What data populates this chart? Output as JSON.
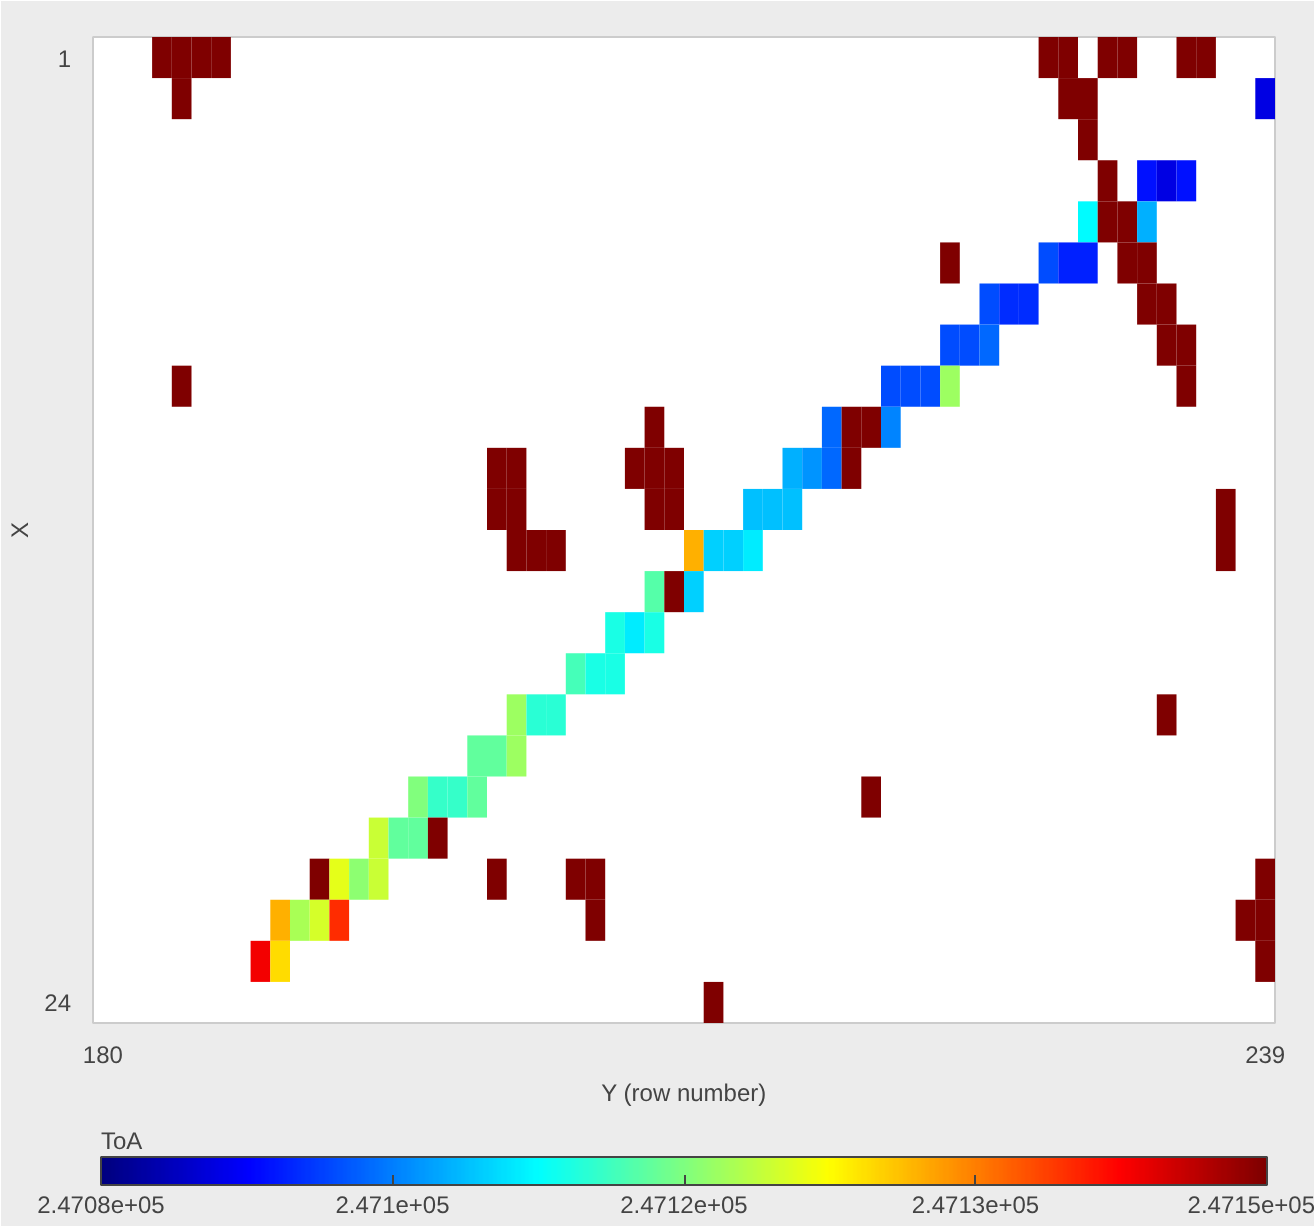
{
  "chart_data": {
    "type": "heatmap",
    "xlabel": "Y (row number)",
    "ylabel": "X",
    "clabel": "ToA",
    "categories": [
      "180",
      null,
      null,
      null,
      null,
      null,
      null,
      null,
      null,
      null,
      null,
      null,
      null,
      null,
      null,
      null,
      null,
      null,
      null,
      null,
      null,
      null,
      null,
      null,
      null,
      null,
      null,
      null,
      null,
      null,
      null,
      null,
      null,
      null,
      null,
      null,
      null,
      null,
      null,
      null,
      null,
      null,
      null,
      null,
      null,
      null,
      null,
      null,
      null,
      null,
      null,
      null,
      null,
      null,
      null,
      null,
      null,
      null,
      null,
      "239"
    ],
    "y_categories": [
      "1",
      null,
      null,
      null,
      null,
      null,
      null,
      null,
      null,
      null,
      null,
      null,
      null,
      null,
      null,
      null,
      null,
      null,
      null,
      null,
      null,
      null,
      null,
      "24"
    ],
    "clim": [
      247080,
      247150
    ],
    "cticks": [
      {
        "value": 247080,
        "label": "2.4708e+05"
      },
      {
        "value": 247097.5,
        "label": "2.471e+05"
      },
      {
        "value": 247115,
        "label": "2.4712e+05"
      },
      {
        "value": 247132.5,
        "label": "2.4713e+05"
      },
      {
        "value": 247150,
        "label": "2.4715e+05"
      }
    ],
    "cells": [
      [
        null,
        null,
        null,
        247150,
        247150,
        247150,
        247150,
        null,
        null,
        null,
        null,
        null,
        null,
        null,
        null,
        null,
        null,
        null,
        null,
        null,
        null,
        null,
        null,
        null,
        null,
        null,
        null,
        null,
        null,
        null,
        null,
        null,
        null,
        null,
        null,
        null,
        null,
        null,
        null,
        null,
        null,
        null,
        null,
        null,
        null,
        null,
        null,
        null,
        247150,
        247150,
        null,
        247150,
        247150,
        null,
        null,
        247150,
        247150,
        null,
        null,
        null
      ],
      [
        null,
        null,
        null,
        null,
        247150,
        null,
        null,
        null,
        null,
        null,
        null,
        null,
        null,
        null,
        null,
        null,
        null,
        null,
        null,
        null,
        null,
        null,
        null,
        null,
        null,
        null,
        null,
        null,
        null,
        null,
        null,
        null,
        null,
        null,
        null,
        null,
        null,
        null,
        null,
        null,
        null,
        null,
        null,
        null,
        null,
        null,
        null,
        null,
        null,
        247150,
        247150,
        null,
        null,
        null,
        null,
        null,
        null,
        null,
        null,
        247087
      ],
      [
        null,
        null,
        null,
        null,
        null,
        null,
        null,
        null,
        null,
        null,
        null,
        null,
        null,
        null,
        null,
        null,
        null,
        null,
        null,
        null,
        null,
        null,
        null,
        null,
        null,
        null,
        null,
        null,
        null,
        null,
        null,
        null,
        null,
        null,
        null,
        null,
        null,
        null,
        null,
        null,
        null,
        null,
        null,
        null,
        null,
        null,
        null,
        null,
        null,
        null,
        247150,
        null,
        null,
        null,
        null,
        null,
        null,
        null,
        null,
        null
      ],
      [
        null,
        null,
        null,
        null,
        null,
        null,
        null,
        null,
        null,
        null,
        null,
        null,
        null,
        null,
        null,
        null,
        null,
        null,
        null,
        null,
        null,
        null,
        null,
        null,
        null,
        null,
        null,
        null,
        null,
        null,
        null,
        null,
        null,
        null,
        null,
        null,
        null,
        null,
        null,
        null,
        null,
        null,
        null,
        null,
        null,
        null,
        null,
        null,
        null,
        null,
        null,
        247150,
        null,
        247090,
        247087,
        247090,
        null,
        null,
        null,
        null
      ],
      [
        null,
        null,
        null,
        null,
        null,
        null,
        null,
        null,
        null,
        null,
        null,
        null,
        null,
        null,
        null,
        null,
        null,
        null,
        null,
        null,
        null,
        null,
        null,
        null,
        null,
        null,
        null,
        null,
        null,
        null,
        null,
        null,
        null,
        null,
        null,
        null,
        null,
        null,
        null,
        null,
        null,
        null,
        null,
        null,
        null,
        null,
        null,
        null,
        null,
        null,
        247106,
        247150,
        247150,
        247101,
        null,
        null,
        null,
        null,
        null,
        null
      ],
      [
        null,
        null,
        null,
        null,
        null,
        null,
        null,
        null,
        null,
        null,
        null,
        null,
        null,
        null,
        null,
        null,
        null,
        null,
        null,
        null,
        null,
        null,
        null,
        null,
        null,
        null,
        null,
        null,
        null,
        null,
        null,
        null,
        null,
        null,
        null,
        null,
        null,
        null,
        null,
        null,
        null,
        null,
        null,
        247150,
        null,
        null,
        null,
        null,
        247094,
        247091,
        247091,
        null,
        247150,
        247150,
        null,
        null,
        null,
        null,
        null,
        null
      ],
      [
        null,
        null,
        null,
        null,
        null,
        null,
        null,
        null,
        null,
        null,
        null,
        null,
        null,
        null,
        null,
        null,
        null,
        null,
        null,
        null,
        null,
        null,
        null,
        null,
        null,
        null,
        null,
        null,
        null,
        null,
        null,
        null,
        null,
        null,
        null,
        null,
        null,
        null,
        null,
        null,
        null,
        null,
        null,
        null,
        null,
        247094,
        247092,
        247092,
        null,
        null,
        null,
        null,
        null,
        247150,
        247150,
        null,
        null,
        null,
        null,
        null
      ],
      [
        null,
        null,
        null,
        null,
        null,
        null,
        null,
        null,
        null,
        null,
        null,
        null,
        null,
        null,
        null,
        null,
        null,
        null,
        null,
        null,
        null,
        null,
        null,
        null,
        null,
        null,
        null,
        null,
        null,
        null,
        null,
        null,
        null,
        null,
        null,
        null,
        null,
        null,
        null,
        null,
        null,
        null,
        null,
        247094,
        247094,
        247096,
        null,
        null,
        null,
        null,
        null,
        null,
        null,
        null,
        247150,
        247150,
        null,
        null,
        null,
        null
      ],
      [
        null,
        null,
        null,
        null,
        247150,
        null,
        null,
        null,
        null,
        null,
        null,
        null,
        null,
        null,
        null,
        null,
        null,
        null,
        null,
        null,
        null,
        null,
        null,
        null,
        null,
        null,
        null,
        null,
        null,
        null,
        null,
        null,
        null,
        null,
        null,
        null,
        null,
        null,
        null,
        null,
        247094,
        247094,
        247094,
        247117,
        null,
        null,
        null,
        null,
        null,
        null,
        null,
        null,
        null,
        null,
        null,
        247150,
        null,
        null,
        null,
        null
      ],
      [
        null,
        null,
        null,
        null,
        null,
        null,
        null,
        null,
        null,
        null,
        null,
        null,
        null,
        null,
        null,
        null,
        null,
        null,
        null,
        null,
        null,
        null,
        null,
        null,
        null,
        null,
        null,
        null,
        247150,
        null,
        null,
        null,
        null,
        null,
        null,
        null,
        null,
        247096,
        247150,
        247150,
        247098,
        null,
        null,
        null,
        null,
        null,
        null,
        null,
        null,
        null,
        null,
        null,
        null,
        null,
        null,
        null,
        null,
        null,
        null,
        null
      ],
      [
        null,
        null,
        null,
        null,
        null,
        null,
        null,
        null,
        null,
        null,
        null,
        null,
        null,
        null,
        null,
        null,
        null,
        null,
        null,
        null,
        247150,
        247150,
        null,
        null,
        null,
        null,
        null,
        247150,
        247150,
        247150,
        null,
        null,
        null,
        null,
        null,
        247101,
        247099,
        247096,
        247150,
        null,
        null,
        null,
        null,
        null,
        null,
        null,
        null,
        null,
        null,
        null,
        null,
        null,
        null,
        null,
        null,
        null,
        null,
        null,
        null,
        null
      ],
      [
        null,
        null,
        null,
        null,
        null,
        null,
        null,
        null,
        null,
        null,
        null,
        null,
        null,
        null,
        null,
        null,
        null,
        null,
        null,
        null,
        247150,
        247150,
        null,
        null,
        null,
        null,
        null,
        null,
        247150,
        247150,
        null,
        null,
        null,
        247102,
        247102,
        247102,
        null,
        null,
        null,
        null,
        null,
        null,
        null,
        null,
        null,
        null,
        null,
        null,
        null,
        null,
        null,
        null,
        null,
        null,
        null,
        null,
        null,
        247150,
        null,
        null
      ],
      [
        null,
        null,
        null,
        null,
        null,
        null,
        null,
        null,
        null,
        null,
        null,
        null,
        null,
        null,
        null,
        null,
        null,
        null,
        null,
        null,
        null,
        247150,
        247150,
        247150,
        null,
        null,
        null,
        null,
        null,
        null,
        247129,
        247103,
        247103,
        247105,
        null,
        null,
        null,
        null,
        null,
        null,
        null,
        null,
        null,
        null,
        null,
        null,
        null,
        null,
        null,
        null,
        null,
        null,
        null,
        null,
        null,
        null,
        null,
        247150,
        null,
        null
      ],
      [
        null,
        null,
        null,
        null,
        null,
        null,
        null,
        null,
        null,
        null,
        null,
        null,
        null,
        null,
        null,
        null,
        null,
        null,
        null,
        null,
        null,
        null,
        null,
        null,
        null,
        null,
        null,
        null,
        247112,
        247150,
        247103,
        null,
        null,
        null,
        null,
        null,
        null,
        null,
        null,
        null,
        null,
        null,
        null,
        null,
        null,
        null,
        null,
        null,
        null,
        null,
        null,
        null,
        null,
        null,
        null,
        null,
        null,
        null,
        null,
        null
      ],
      [
        null,
        null,
        null,
        null,
        null,
        null,
        null,
        null,
        null,
        null,
        null,
        null,
        null,
        null,
        null,
        null,
        null,
        null,
        null,
        null,
        null,
        null,
        null,
        null,
        null,
        null,
        247108,
        247105,
        247108,
        null,
        null,
        null,
        null,
        null,
        null,
        null,
        null,
        null,
        null,
        null,
        null,
        null,
        null,
        null,
        null,
        null,
        null,
        null,
        null,
        null,
        null,
        null,
        null,
        null,
        null,
        null,
        null,
        null,
        null,
        null
      ],
      [
        null,
        null,
        null,
        null,
        null,
        null,
        null,
        null,
        null,
        null,
        null,
        null,
        null,
        null,
        null,
        null,
        null,
        null,
        null,
        null,
        null,
        null,
        null,
        null,
        247111,
        247108,
        247108,
        null,
        null,
        null,
        null,
        null,
        null,
        null,
        null,
        null,
        null,
        null,
        null,
        null,
        null,
        null,
        null,
        null,
        null,
        null,
        null,
        null,
        null,
        null,
        null,
        null,
        null,
        null,
        null,
        null,
        null,
        null,
        null,
        null
      ],
      [
        null,
        null,
        null,
        null,
        null,
        null,
        null,
        null,
        null,
        null,
        null,
        null,
        null,
        null,
        null,
        null,
        null,
        null,
        null,
        null,
        null,
        247117,
        247109,
        247109,
        null,
        null,
        null,
        null,
        null,
        null,
        null,
        null,
        null,
        null,
        null,
        null,
        null,
        null,
        null,
        null,
        null,
        null,
        null,
        null,
        null,
        null,
        null,
        null,
        null,
        null,
        null,
        null,
        null,
        null,
        247150,
        null,
        null,
        null,
        null,
        null
      ],
      [
        null,
        null,
        null,
        null,
        null,
        null,
        null,
        null,
        null,
        null,
        null,
        null,
        null,
        null,
        null,
        null,
        null,
        null,
        null,
        247113,
        247113,
        247117,
        null,
        null,
        null,
        null,
        null,
        null,
        null,
        null,
        null,
        null,
        null,
        null,
        null,
        null,
        null,
        null,
        null,
        null,
        null,
        null,
        null,
        null,
        null,
        null,
        null,
        null,
        null,
        null,
        null,
        null,
        null,
        null,
        null,
        null,
        null,
        null,
        null,
        null
      ],
      [
        null,
        null,
        null,
        null,
        null,
        null,
        null,
        null,
        null,
        null,
        null,
        null,
        null,
        null,
        null,
        null,
        247115,
        247110,
        247110,
        247113,
        null,
        null,
        null,
        null,
        null,
        null,
        null,
        null,
        null,
        null,
        null,
        null,
        null,
        null,
        null,
        null,
        null,
        null,
        null,
        247150,
        null,
        null,
        null,
        null,
        null,
        null,
        null,
        null,
        null,
        null,
        null,
        null,
        null,
        null,
        null,
        null,
        null,
        null,
        null,
        null
      ],
      [
        null,
        null,
        null,
        null,
        null,
        null,
        null,
        null,
        null,
        null,
        null,
        null,
        null,
        null,
        247120,
        247113,
        247113,
        247150,
        null,
        null,
        null,
        null,
        null,
        null,
        null,
        null,
        null,
        null,
        null,
        null,
        null,
        null,
        null,
        null,
        null,
        null,
        null,
        null,
        null,
        null,
        null,
        null,
        null,
        null,
        null,
        null,
        null,
        null,
        null,
        null,
        null,
        null,
        null,
        null,
        null,
        null,
        null,
        null,
        null,
        null
      ],
      [
        null,
        null,
        null,
        null,
        null,
        null,
        null,
        null,
        null,
        null,
        null,
        247150,
        247122,
        247116,
        247120,
        null,
        null,
        null,
        null,
        null,
        247150,
        null,
        null,
        null,
        247150,
        247150,
        null,
        null,
        null,
        null,
        null,
        null,
        null,
        null,
        null,
        null,
        null,
        null,
        null,
        null,
        null,
        null,
        null,
        null,
        null,
        null,
        null,
        null,
        null,
        null,
        null,
        null,
        null,
        null,
        null,
        null,
        null,
        null,
        null,
        247150
      ],
      [
        null,
        null,
        null,
        null,
        null,
        null,
        null,
        null,
        null,
        247129,
        247118,
        247121,
        247138,
        null,
        null,
        null,
        null,
        null,
        null,
        null,
        null,
        null,
        null,
        null,
        null,
        247150,
        null,
        null,
        null,
        null,
        null,
        null,
        null,
        null,
        null,
        null,
        null,
        null,
        null,
        null,
        null,
        null,
        null,
        null,
        null,
        null,
        null,
        null,
        null,
        null,
        null,
        null,
        null,
        null,
        null,
        null,
        null,
        null,
        247150,
        247150
      ],
      [
        null,
        null,
        null,
        null,
        null,
        null,
        null,
        null,
        247142,
        247126,
        null,
        null,
        null,
        null,
        null,
        null,
        null,
        null,
        null,
        null,
        null,
        null,
        null,
        null,
        null,
        null,
        null,
        null,
        null,
        null,
        null,
        null,
        null,
        null,
        null,
        null,
        null,
        null,
        null,
        null,
        null,
        null,
        null,
        null,
        null,
        null,
        null,
        null,
        null,
        null,
        null,
        null,
        null,
        null,
        null,
        null,
        null,
        null,
        null,
        247150
      ],
      [
        null,
        null,
        null,
        null,
        null,
        null,
        null,
        null,
        null,
        null,
        null,
        null,
        null,
        null,
        null,
        null,
        null,
        null,
        null,
        null,
        null,
        null,
        null,
        null,
        null,
        null,
        null,
        null,
        null,
        null,
        null,
        247150,
        null,
        null,
        null,
        null,
        null,
        null,
        null,
        null,
        null,
        null,
        null,
        null,
        null,
        null,
        null,
        null,
        null,
        null,
        null,
        null,
        null,
        null,
        null,
        null,
        null,
        null,
        null,
        null
      ]
    ]
  }
}
